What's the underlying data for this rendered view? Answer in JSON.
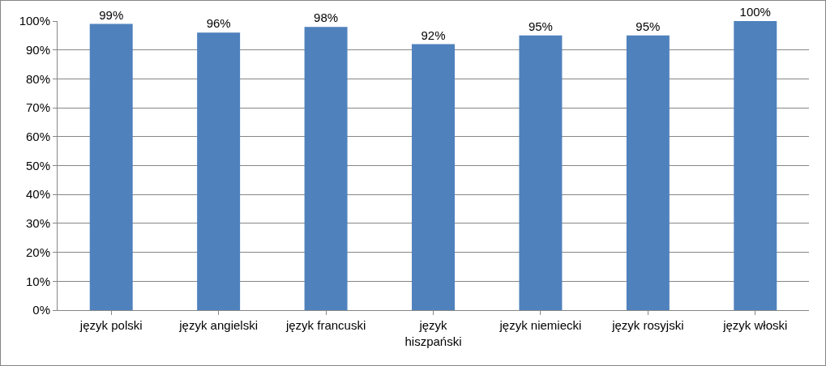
{
  "chart_data": {
    "type": "bar",
    "categories": [
      "język polski",
      "język angielski",
      "język francuski",
      "język hiszpański",
      "język niemiecki",
      "język rosyjski",
      "język włoski"
    ],
    "values": [
      99,
      96,
      98,
      92,
      95,
      95,
      100
    ],
    "color": "#4f81bd",
    "value_labels": [
      "99%",
      "96%",
      "98%",
      "92%",
      "95%",
      "95%",
      "100%"
    ],
    "ylim": [
      0,
      100
    ],
    "yticks": [
      {
        "value": 0,
        "label": "0%"
      },
      {
        "value": 10,
        "label": "10%"
      },
      {
        "value": 20,
        "label": "20%"
      },
      {
        "value": 30,
        "label": "30%"
      },
      {
        "value": 40,
        "label": "40%"
      },
      {
        "value": 50,
        "label": "50%"
      },
      {
        "value": 60,
        "label": "60%"
      },
      {
        "value": 70,
        "label": "70%"
      },
      {
        "value": 80,
        "label": "80%"
      },
      {
        "value": 90,
        "label": "90%"
      },
      {
        "value": 100,
        "label": "100%"
      }
    ],
    "grid": "y"
  }
}
